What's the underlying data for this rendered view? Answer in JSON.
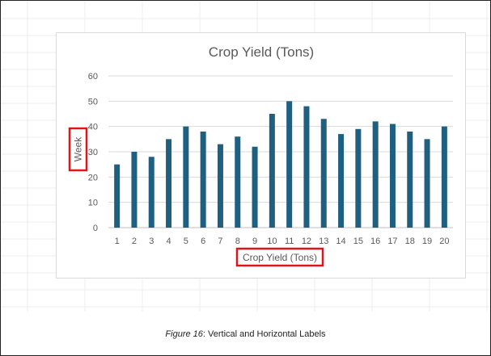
{
  "caption": {
    "figure_label": "Figure 16",
    "text": ": Vertical and Horizontal Labels"
  },
  "colors": {
    "bar": "#1f5f7f",
    "highlight": "#e0151c",
    "grid": "#d9d9d9",
    "text": "#595959"
  },
  "chart_data": {
    "type": "bar",
    "title": "Crop Yield (Tons)",
    "xlabel": "Crop Yield (Tons)",
    "ylabel": "Week",
    "categories": [
      "1",
      "2",
      "3",
      "4",
      "5",
      "6",
      "7",
      "8",
      "9",
      "10",
      "11",
      "12",
      "13",
      "14",
      "15",
      "16",
      "17",
      "18",
      "19",
      "20"
    ],
    "values": [
      25,
      30,
      28,
      35,
      40,
      38,
      33,
      36,
      32,
      45,
      50,
      48,
      43,
      37,
      39,
      42,
      41,
      38,
      35,
      40
    ],
    "ylim": [
      0,
      60
    ],
    "yticks": [
      0,
      10,
      20,
      30,
      40,
      50,
      60
    ],
    "grid": true,
    "legend": "none",
    "highlighted_labels": [
      "xlabel",
      "ylabel"
    ]
  }
}
